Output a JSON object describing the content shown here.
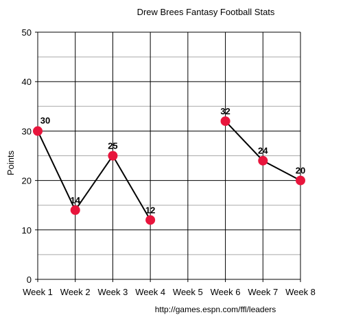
{
  "chart_data": {
    "type": "line",
    "title": "Drew Brees Fantasy Football Stats",
    "xlabel": "",
    "ylabel": "Points",
    "categories": [
      "Week 1",
      "Week 2",
      "Week 3",
      "Week 4",
      "Week 5",
      "Week 6",
      "Week 7",
      "Week 8"
    ],
    "series": [
      {
        "values": [
          30,
          14,
          25,
          12,
          null,
          32,
          24,
          20
        ],
        "color": "#e8153c"
      }
    ],
    "ylim": [
      0,
      50
    ],
    "yticks": [
      0,
      10,
      20,
      30,
      40,
      50
    ],
    "grid": true,
    "legend": "none",
    "source": "http://games.espn.com/ffl/leaders"
  }
}
